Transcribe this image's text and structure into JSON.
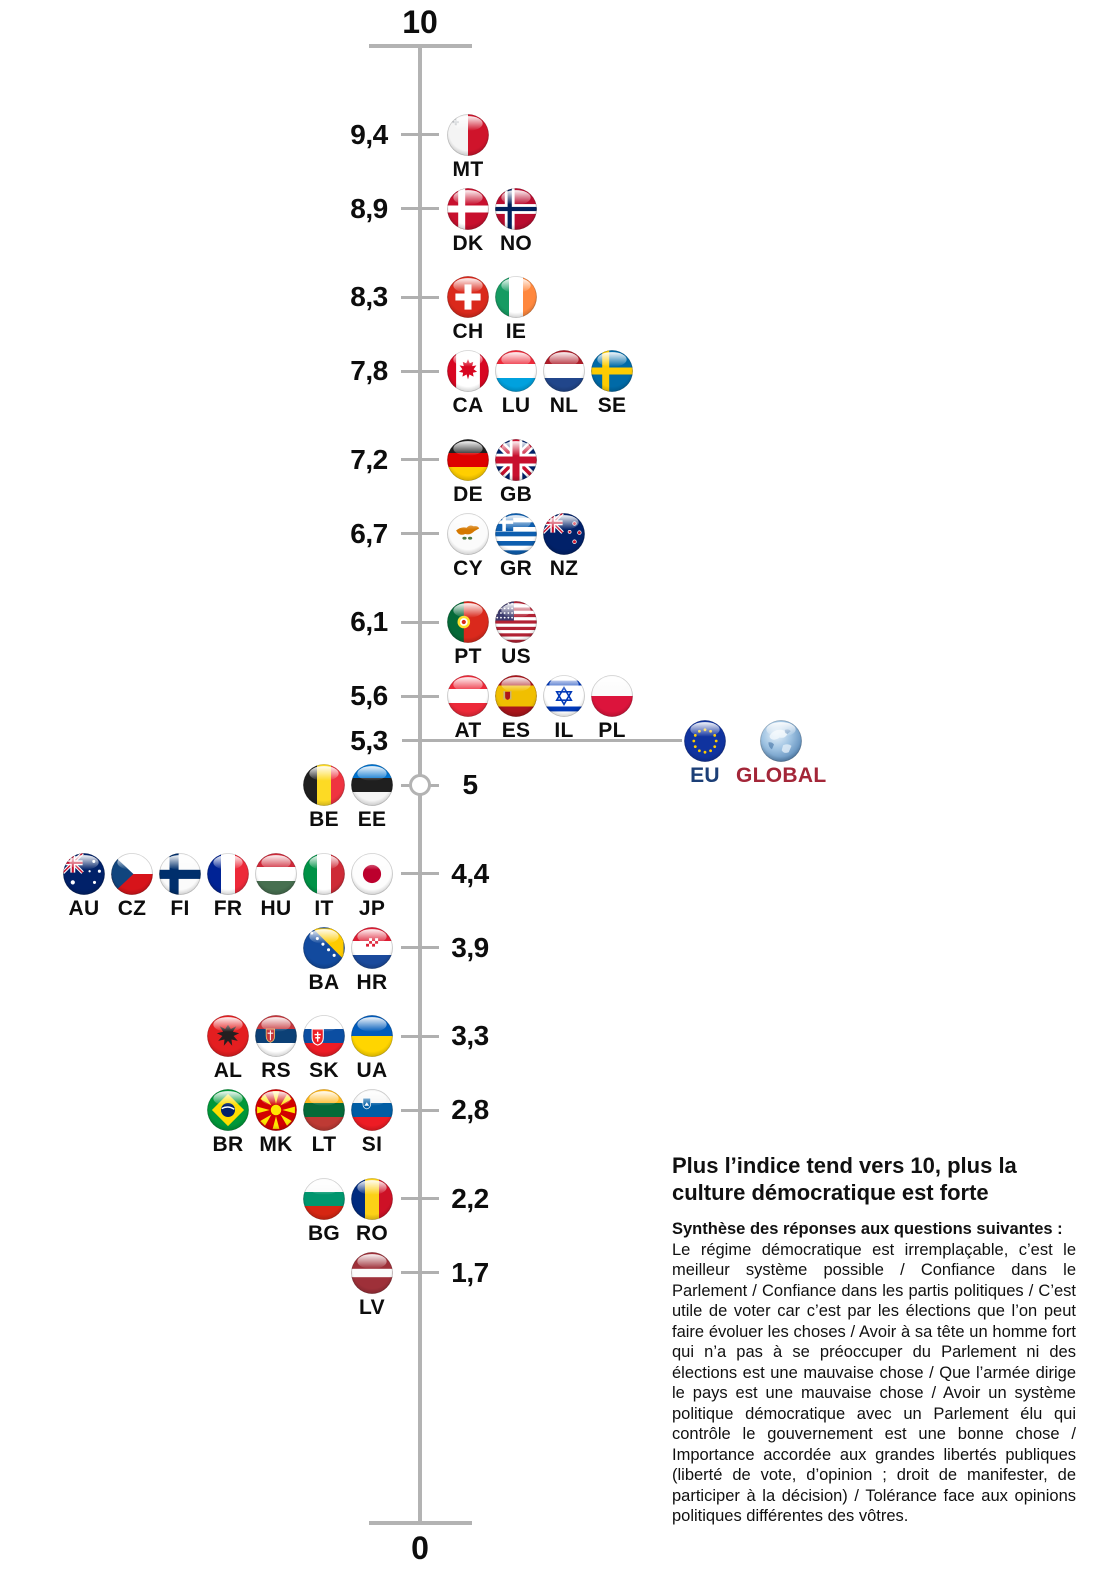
{
  "chart_data": {
    "type": "scatter",
    "orientation": "vertical-axis",
    "axis_range": [
      0,
      10
    ],
    "axis_top_label": "10",
    "axis_bottom_label": "0",
    "grid": false,
    "rows": [
      {
        "value": 9.4,
        "display": "9,4",
        "side": "right",
        "countries": [
          {
            "code": "MT",
            "label": "MT"
          }
        ]
      },
      {
        "value": 8.9,
        "display": "8,9",
        "side": "right",
        "countries": [
          {
            "code": "DK",
            "label": "DK"
          },
          {
            "code": "NO",
            "label": "NO"
          }
        ]
      },
      {
        "value": 8.3,
        "display": "8,3",
        "side": "right",
        "countries": [
          {
            "code": "CH",
            "label": "CH"
          },
          {
            "code": "IE",
            "label": "IE"
          }
        ]
      },
      {
        "value": 7.8,
        "display": "7,8",
        "side": "right",
        "countries": [
          {
            "code": "CA",
            "label": "CA"
          },
          {
            "code": "LU",
            "label": "LU"
          },
          {
            "code": "NL",
            "label": "NL"
          },
          {
            "code": "SE",
            "label": "SE"
          }
        ]
      },
      {
        "value": 7.2,
        "display": "7,2",
        "side": "right",
        "countries": [
          {
            "code": "DE",
            "label": "DE"
          },
          {
            "code": "GB",
            "label": "GB"
          }
        ]
      },
      {
        "value": 6.7,
        "display": "6,7",
        "side": "right",
        "countries": [
          {
            "code": "CY",
            "label": "CY"
          },
          {
            "code": "GR",
            "label": "GR"
          },
          {
            "code": "NZ",
            "label": "NZ"
          }
        ]
      },
      {
        "value": 6.1,
        "display": "6,1",
        "side": "right",
        "countries": [
          {
            "code": "PT",
            "label": "PT"
          },
          {
            "code": "US",
            "label": "US"
          }
        ]
      },
      {
        "value": 5.6,
        "display": "5,6",
        "side": "right",
        "countries": [
          {
            "code": "AT",
            "label": "AT"
          },
          {
            "code": "ES",
            "label": "ES"
          },
          {
            "code": "IL",
            "label": "IL"
          },
          {
            "code": "PL",
            "label": "PL"
          }
        ]
      },
      {
        "value": 5.3,
        "display": "5,3",
        "side": "right-extended",
        "countries": [
          {
            "code": "EU",
            "label": "EU",
            "label_color": "#1c3f77"
          },
          {
            "code": "GLOBAL",
            "label": "GLOBAL",
            "label_color": "#a32638"
          }
        ]
      },
      {
        "value": 5.0,
        "display": "5",
        "side": "left",
        "marker": "open-circle",
        "countries": [
          {
            "code": "BE",
            "label": "BE"
          },
          {
            "code": "EE",
            "label": "EE"
          }
        ]
      },
      {
        "value": 4.4,
        "display": "4,4",
        "side": "left",
        "countries": [
          {
            "code": "AU",
            "label": "AU"
          },
          {
            "code": "CZ",
            "label": "CZ"
          },
          {
            "code": "FI",
            "label": "FI"
          },
          {
            "code": "FR",
            "label": "FR"
          },
          {
            "code": "HU",
            "label": "HU"
          },
          {
            "code": "IT",
            "label": "IT"
          },
          {
            "code": "JP",
            "label": "JP"
          }
        ]
      },
      {
        "value": 3.9,
        "display": "3,9",
        "side": "left",
        "countries": [
          {
            "code": "BA",
            "label": "BA"
          },
          {
            "code": "HR",
            "label": "HR"
          }
        ]
      },
      {
        "value": 3.3,
        "display": "3,3",
        "side": "left",
        "countries": [
          {
            "code": "AL",
            "label": "AL"
          },
          {
            "code": "RS",
            "label": "RS"
          },
          {
            "code": "SK",
            "label": "SK"
          },
          {
            "code": "UA",
            "label": "UA"
          }
        ]
      },
      {
        "value": 2.8,
        "display": "2,8",
        "side": "left",
        "countries": [
          {
            "code": "BR",
            "label": "BR"
          },
          {
            "code": "MK",
            "label": "MK"
          },
          {
            "code": "LT",
            "label": "LT"
          },
          {
            "code": "SI",
            "label": "SI"
          }
        ]
      },
      {
        "value": 2.2,
        "display": "2,2",
        "side": "left",
        "countries": [
          {
            "code": "BG",
            "label": "BG"
          },
          {
            "code": "RO",
            "label": "RO"
          }
        ]
      },
      {
        "value": 1.7,
        "display": "1,7",
        "side": "left",
        "countries": [
          {
            "code": "LV",
            "label": "LV"
          }
        ]
      }
    ]
  },
  "annotation": {
    "title": "Plus l’indice tend vers 10, plus la culture démocratique est forte",
    "subtitle": "Synthèse des réponses aux questions suivantes :",
    "body": "Le régime démocratique est irremplaçable, c’est le meilleur système possible / Confiance dans le Parlement / Confiance dans les partis politiques / C’est utile de voter car c’est par les élections que l’on peut faire évoluer les choses / Avoir à sa tête un homme fort qui n’a pas à se préoccuper du Parlement ni des élections est une mauvaise chose / Que l’armée dirige le pays est une mauvaise chose / Avoir un système politique démocratique avec un Parlement élu qui contrôle le gouvernement est une bonne chose / Importance accordée aux grandes libertés publiques (liberté de vote, d’opinion ; droit de manifester, de participer à la décision) / Tolérance face aux opinions politiques différentes des vôtres."
  },
  "colors": {
    "axis": "#b3b3b3",
    "text": "#0d0d0d",
    "eu_label": "#1c3f77",
    "global_label": "#a32638"
  }
}
